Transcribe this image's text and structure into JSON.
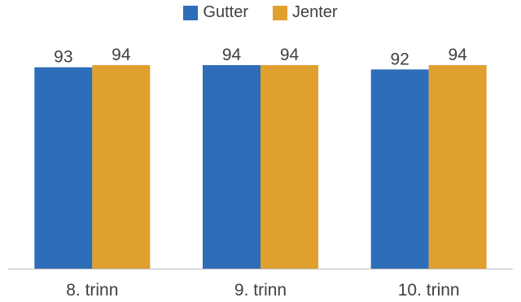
{
  "chart_data": {
    "type": "bar",
    "categories": [
      "8. trinn",
      "9. trinn",
      "10. trinn"
    ],
    "series": [
      {
        "name": "Gutter",
        "values": [
          93,
          94,
          92
        ],
        "color": "#2E6DB8"
      },
      {
        "name": "Jenter",
        "values": [
          94,
          94,
          94
        ],
        "color": "#E0A030"
      }
    ],
    "data_labels": true,
    "legend_position": "top",
    "grid": false
  }
}
